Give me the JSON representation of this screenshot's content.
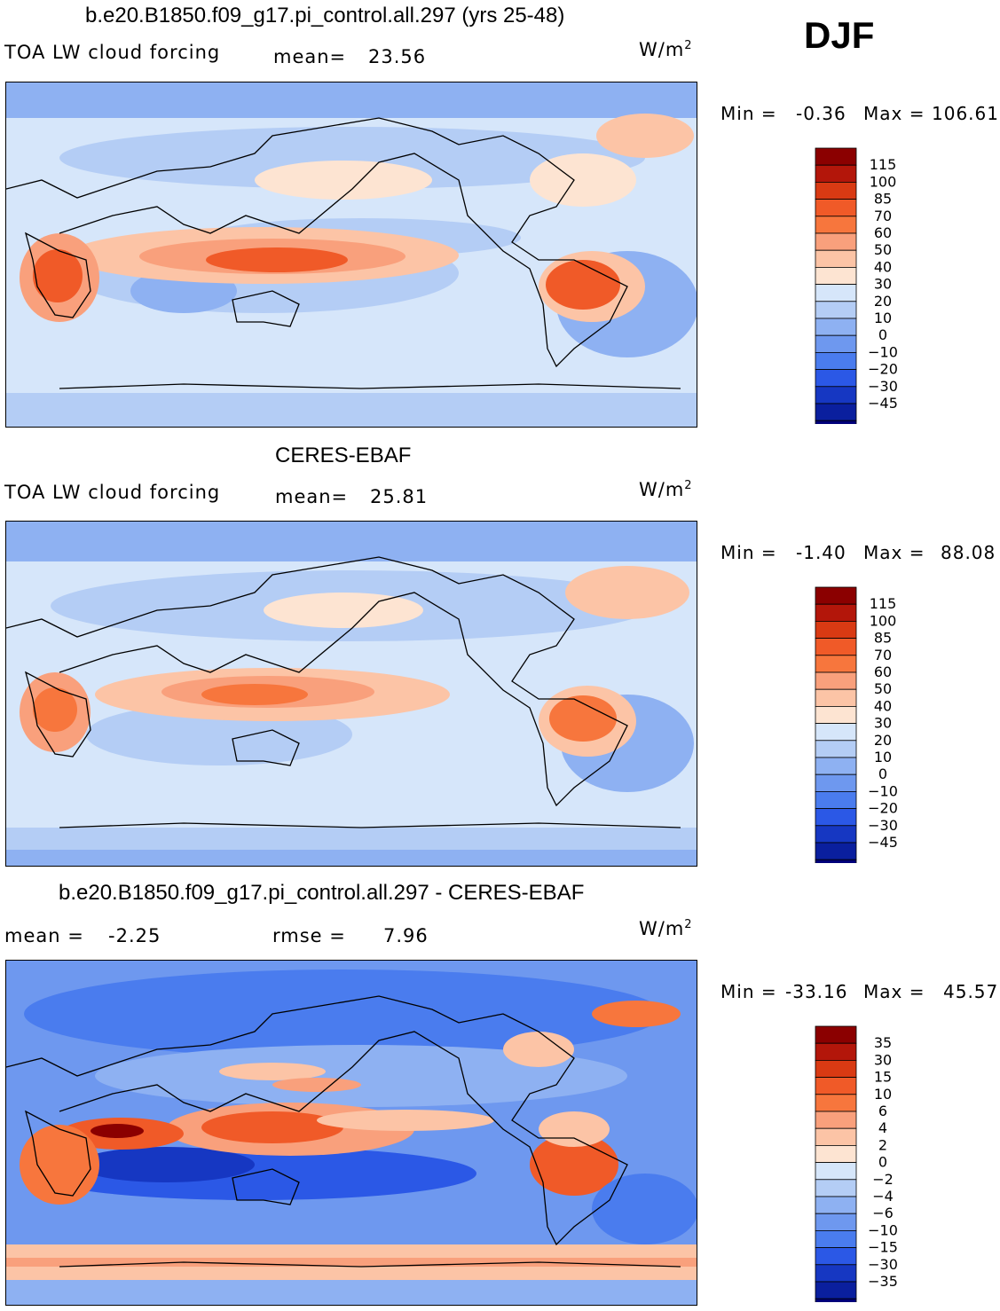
{
  "figure": {
    "season": "DJF",
    "units_base": "W/m",
    "units_exp": "2"
  },
  "panels": [
    {
      "id": "model",
      "title": "b.e20.B1850.f09_g17.pi_control.all.297 (yrs 25-48)",
      "left_label": "TOA LW cloud forcing",
      "stat1_label": "mean=",
      "stat1_value": "23.56",
      "min_label": "Min =",
      "min_value": "-0.36",
      "max_label": "Max =",
      "max_value": "106.61"
    },
    {
      "id": "obs",
      "title": "CERES-EBAF",
      "left_label": "TOA LW cloud forcing",
      "stat1_label": "mean=",
      "stat1_value": "25.81",
      "min_label": "Min =",
      "min_value": "-1.40",
      "max_label": "Max =",
      "max_value": "88.08"
    },
    {
      "id": "diff",
      "title": "b.e20.B1850.f09_g17.pi_control.all.297 - CERES-EBAF",
      "left_label": "mean =",
      "stat1_value": "-2.25",
      "stat2_label": "rmse =",
      "stat2_value": "7.96",
      "min_label": "Min =",
      "min_value": "-33.16",
      "max_label": "Max =",
      "max_value": "45.57"
    }
  ],
  "chart_data": [
    {
      "type": "heatmap",
      "title": "b.e20.B1850.f09_g17.pi_control.all.297 (yrs 25-48)",
      "variable": "TOA LW cloud forcing",
      "season": "DJF",
      "units": "W/m^2",
      "mean": 23.56,
      "min": -0.36,
      "max": 106.61,
      "colorbar_levels": [
        115,
        100,
        85,
        70,
        60,
        50,
        40,
        30,
        20,
        10,
        0,
        -10,
        -20,
        -30,
        -45
      ],
      "colorbar_colors": [
        "#8b0000",
        "#b3160a",
        "#d93a13",
        "#f05a28",
        "#f7763d",
        "#f9a07c",
        "#fcc4a6",
        "#fde4d2",
        "#d6e6fa",
        "#b4cdf5",
        "#8eb1f2",
        "#6e98ef",
        "#4a7cee",
        "#2b58e6",
        "#1637c2",
        "#0a1f9e",
        "#00007a"
      ]
    },
    {
      "type": "heatmap",
      "title": "CERES-EBAF",
      "variable": "TOA LW cloud forcing",
      "season": "DJF",
      "units": "W/m^2",
      "mean": 25.81,
      "min": -1.4,
      "max": 88.08,
      "colorbar_levels": [
        115,
        100,
        85,
        70,
        60,
        50,
        40,
        30,
        20,
        10,
        0,
        -10,
        -20,
        -30,
        -45
      ],
      "colorbar_colors": [
        "#8b0000",
        "#b3160a",
        "#d93a13",
        "#f05a28",
        "#f7763d",
        "#f9a07c",
        "#fcc4a6",
        "#fde4d2",
        "#d6e6fa",
        "#b4cdf5",
        "#8eb1f2",
        "#6e98ef",
        "#4a7cee",
        "#2b58e6",
        "#1637c2",
        "#0a1f9e",
        "#00007a"
      ]
    },
    {
      "type": "heatmap",
      "title": "b.e20.B1850.f09_g17.pi_control.all.297 - CERES-EBAF",
      "variable": "TOA LW cloud forcing difference",
      "season": "DJF",
      "units": "W/m^2",
      "mean": -2.25,
      "rmse": 7.96,
      "min": -33.16,
      "max": 45.57,
      "colorbar_levels": [
        35,
        30,
        15,
        10,
        6,
        4,
        2,
        0,
        -2,
        -4,
        -6,
        -10,
        -15,
        -30,
        -35
      ],
      "colorbar_colors": [
        "#8b0000",
        "#b3160a",
        "#d93a13",
        "#f05a28",
        "#f7763d",
        "#f9a07c",
        "#fcc4a6",
        "#fde4d2",
        "#d6e6fa",
        "#b4cdf5",
        "#8eb1f2",
        "#6e98ef",
        "#4a7cee",
        "#2b58e6",
        "#1637c2",
        "#0a1f9e",
        "#00007a"
      ]
    }
  ]
}
